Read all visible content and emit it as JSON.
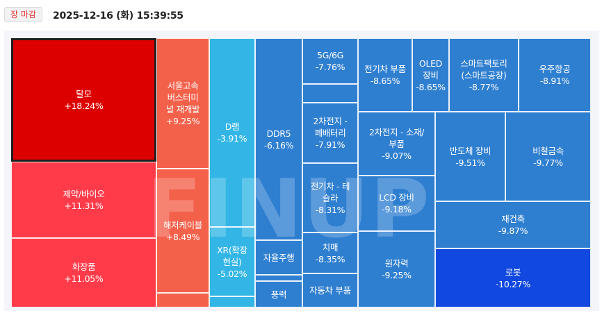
{
  "status_badge": "장 마감",
  "timestamp": "2025-12-16 (화) 15:39:55",
  "watermark": "FINUP",
  "colors": {
    "deep_red": "#dd0000",
    "red": "#ff3b4a",
    "orange_red": "#f4614b",
    "sky": "#33b6e6",
    "blue": "#2f7fd1",
    "deep_blue": "#1048e0"
  },
  "tiles": {
    "t1": {
      "name": "탈모",
      "change": "+18.24%"
    },
    "t2": {
      "name": "제약/바이오",
      "change": "+11.31%"
    },
    "t3": {
      "name": "화장품",
      "change": "+11.05%"
    },
    "t4": {
      "name": "서울고속버스터미널 재개발",
      "change": "+9.25%"
    },
    "t5": {
      "name": "해저케이블",
      "change": "+8.49%"
    },
    "t6": {
      "name": "D램",
      "change": "-3.91%"
    },
    "t7": {
      "name": "XR(확장현실)",
      "change": "-5.02%"
    },
    "t8": {
      "name": "DDR5",
      "change": "-6.16%"
    },
    "t9": {
      "name": "자율주행",
      "change": ""
    },
    "t10": {
      "name": "풍력",
      "change": ""
    },
    "t11": {
      "name": "5G/6G",
      "change": "-7.76%"
    },
    "t12": {
      "name": "2차전지 - 폐배터리",
      "change": "-7.91%"
    },
    "t13": {
      "name": "전기차 - 테슬라",
      "change": "-8.31%"
    },
    "t14": {
      "name": "치매",
      "change": "-8.35%"
    },
    "t15": {
      "name": "자동차 부품",
      "change": ""
    },
    "t16": {
      "name": "전기차 부품",
      "change": "-8.65%"
    },
    "t17": {
      "name": "OLED 장비",
      "change": "-8.65%"
    },
    "t18": {
      "name": "스마트팩토리 (스마트공장)",
      "change": "-8.77%"
    },
    "t19": {
      "name": "우주항공",
      "change": "-8.91%"
    },
    "t20": {
      "name": "2차전지 - 소재/부품",
      "change": "-9.07%"
    },
    "t21": {
      "name": "LCD 장비",
      "change": "-9.18%"
    },
    "t22": {
      "name": "원자력",
      "change": "-9.25%"
    },
    "t23": {
      "name": "반도체 장비",
      "change": "-9.51%"
    },
    "t24": {
      "name": "비철금속",
      "change": "-9.77%"
    },
    "t25": {
      "name": "재건축",
      "change": "-9.87%"
    },
    "t26": {
      "name": "로봇",
      "change": "-10.27%"
    }
  }
}
